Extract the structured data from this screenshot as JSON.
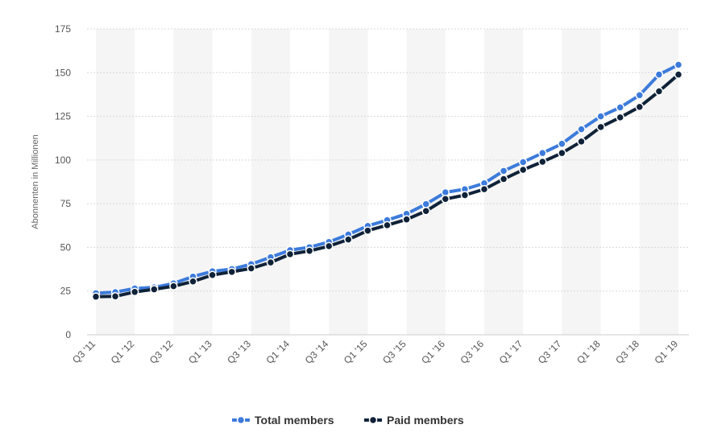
{
  "chart_data": {
    "type": "line",
    "ylabel": "Abonnenten in Millionen",
    "ylim": [
      0,
      175
    ],
    "yticks": [
      0,
      25,
      50,
      75,
      100,
      125,
      150,
      175
    ],
    "grid": true,
    "legend_position": "bottom-center",
    "categories": [
      "Q3 '11",
      "Q4 '11",
      "Q1 '12",
      "Q2 '12",
      "Q3 '12",
      "Q4 '12",
      "Q1 '13",
      "Q2 '13",
      "Q3 '13",
      "Q4 '13",
      "Q1 '14",
      "Q2 '14",
      "Q3 '14",
      "Q4 '14",
      "Q1 '15",
      "Q2 '15",
      "Q3 '15",
      "Q4 '15",
      "Q1 '16",
      "Q2 '16",
      "Q3 '16",
      "Q4 '16",
      "Q1 '17",
      "Q2 '17",
      "Q3 '17",
      "Q4 '17",
      "Q1 '18",
      "Q2 '18",
      "Q3 '18",
      "Q4 '18",
      "Q1 '19"
    ],
    "tick_labels": [
      "Q3 '11",
      "Q1 '12",
      "Q3 '12",
      "Q1 '13",
      "Q3 '13",
      "Q1 '14",
      "Q3 '14",
      "Q1 '15",
      "Q3 '15",
      "Q1 '16",
      "Q3 '16",
      "Q1 '17",
      "Q3 '17",
      "Q1 '18",
      "Q3 '18",
      "Q1 '19"
    ],
    "series": [
      {
        "name": "Total members",
        "color": "#3c7bdb",
        "values": [
          23.8,
          24.4,
          26.5,
          27.1,
          29.4,
          33.3,
          36.3,
          37.6,
          40.4,
          44.4,
          48.4,
          50.1,
          53.1,
          57.4,
          62.3,
          65.6,
          69.2,
          74.8,
          81.5,
          83.3,
          86.7,
          93.8,
          98.8,
          104.0,
          109.3,
          117.6,
          125.0,
          130.1,
          137.1,
          148.9,
          154.5
        ]
      },
      {
        "name": "Paid members",
        "color": "#0f2238",
        "values": [
          21.8,
          22.0,
          24.5,
          26.0,
          27.8,
          30.5,
          34.2,
          36.0,
          38.0,
          41.4,
          46.1,
          48.0,
          50.7,
          54.5,
          59.6,
          62.7,
          66.0,
          70.8,
          77.7,
          79.9,
          83.3,
          89.1,
          94.4,
          99.0,
          104.0,
          110.6,
          118.9,
          124.4,
          130.4,
          139.3,
          148.9
        ]
      }
    ]
  }
}
